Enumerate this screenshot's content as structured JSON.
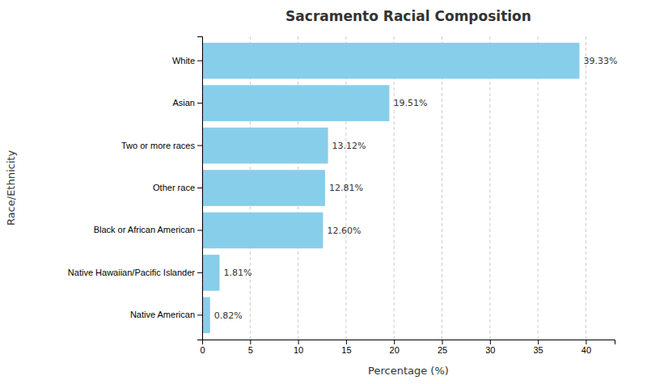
{
  "chart_data": {
    "type": "bar",
    "orientation": "horizontal",
    "title": "Sacramento Racial Composition",
    "xlabel": "Percentage (%)",
    "ylabel": "Race/Ethnicity",
    "categories": [
      "Native American",
      "Native Hawaiian/Pacific Islander",
      "Black or African American",
      "Other race",
      "Two or more races",
      "Asian",
      "White"
    ],
    "values": [
      0.82,
      1.81,
      12.6,
      12.81,
      13.12,
      19.51,
      39.33
    ],
    "value_labels": [
      "0.82%",
      "1.81%",
      "12.60%",
      "12.81%",
      "13.12%",
      "19.51%",
      "39.33%"
    ],
    "data_labels": true,
    "color": "#87CEEB",
    "xlim": [
      0,
      43
    ],
    "xticks": [
      0,
      5,
      10,
      15,
      20,
      25,
      30,
      35,
      40
    ],
    "grid": true
  }
}
